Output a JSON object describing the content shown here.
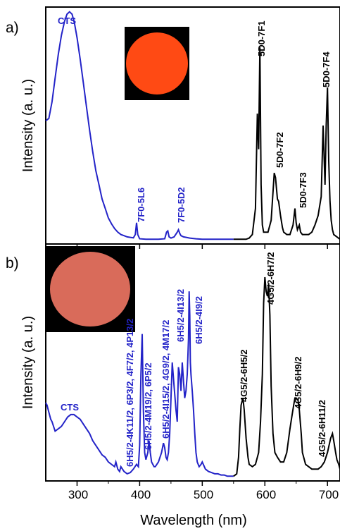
{
  "panels": [
    {
      "label": "a)",
      "ylabel": "Intensity (a. u.)"
    },
    {
      "label": "b)",
      "ylabel": "Intensity (a. u.)"
    }
  ],
  "xlabel": "Wavelength (nm)",
  "xticks": [
    "300",
    "400",
    "500",
    "600",
    "700"
  ],
  "colors": {
    "excitation": "#2323c8",
    "emission": "#000000",
    "photo_a": "#ff4a14",
    "photo_b": "#d96b5a"
  },
  "chart_data": [
    {
      "type": "line",
      "panel": "a",
      "xlabel": "Wavelength (nm)",
      "ylabel": "Intensity (a. u.)",
      "xlim": [
        250,
        720
      ],
      "grid": false,
      "annotations": {
        "cts": "CTS",
        "f0l6": "7F0-5L6",
        "f0d2": "7F0-5D2",
        "d0f1": "5D0-7F1",
        "d0f2": "5D0-7F2",
        "d0f3": "5D0-7F3",
        "d0f4": "5D0-7F4"
      },
      "series": [
        {
          "role": "excitation",
          "x": [
            250,
            255,
            260,
            265,
            270,
            275,
            280,
            284,
            288,
            292,
            296,
            300,
            305,
            310,
            315,
            320,
            325,
            330,
            335,
            340,
            345,
            350,
            355,
            360,
            365,
            370,
            375,
            380,
            385,
            390,
            393,
            395,
            397,
            400,
            410,
            420,
            430,
            440,
            443,
            445,
            447,
            450,
            455,
            460,
            462,
            464,
            466,
            470,
            480,
            490,
            500,
            510,
            520,
            530,
            540,
            550
          ],
          "y": [
            0.52,
            0.53,
            0.6,
            0.7,
            0.8,
            0.88,
            0.94,
            0.97,
            0.98,
            0.97,
            0.93,
            0.87,
            0.78,
            0.68,
            0.58,
            0.48,
            0.39,
            0.31,
            0.25,
            0.19,
            0.15,
            0.11,
            0.085,
            0.065,
            0.05,
            0.04,
            0.035,
            0.03,
            0.028,
            0.026,
            0.04,
            0.09,
            0.04,
            0.022,
            0.02,
            0.02,
            0.02,
            0.022,
            0.05,
            0.055,
            0.03,
            0.025,
            0.03,
            0.05,
            0.06,
            0.045,
            0.035,
            0.03,
            0.025,
            0.022,
            0.02,
            0.02,
            0.02,
            0.02,
            0.02,
            0.02
          ]
        },
        {
          "role": "emission",
          "x": [
            550,
            560,
            570,
            575,
            580,
            585,
            588,
            590,
            592,
            594,
            596,
            598,
            600,
            605,
            610,
            615,
            617,
            620,
            622,
            625,
            628,
            630,
            635,
            640,
            645,
            648,
            650,
            652,
            655,
            657,
            660,
            665,
            670,
            675,
            680,
            685,
            690,
            693,
            696,
            698,
            700,
            702,
            704,
            706,
            708,
            710,
            715,
            720
          ],
          "y": [
            0.02,
            0.02,
            0.02,
            0.025,
            0.04,
            0.15,
            0.55,
            0.4,
            0.83,
            0.25,
            0.08,
            0.05,
            0.05,
            0.05,
            0.1,
            0.3,
            0.28,
            0.19,
            0.18,
            0.12,
            0.07,
            0.05,
            0.04,
            0.04,
            0.08,
            0.15,
            0.09,
            0.06,
            0.08,
            0.05,
            0.04,
            0.04,
            0.04,
            0.05,
            0.08,
            0.12,
            0.2,
            0.5,
            0.25,
            0.5,
            0.66,
            0.35,
            0.18,
            0.1,
            0.06,
            0.04,
            0.03,
            0.02
          ]
        }
      ]
    },
    {
      "type": "line",
      "panel": "b",
      "xlabel": "Wavelength (nm)",
      "ylabel": "Intensity (a. u.)",
      "xlim": [
        250,
        720
      ],
      "grid": false,
      "annotations": {
        "cts": "CTS",
        "h_k": "6H5/2-4K11/2, 6P3/2, 4F7/2, 4P13/2",
        "h_m": "6H5/2-4M19/2, 6P5/2",
        "h_i15": "6H5/2-4I15/2, 4G9/2, 4M17/2",
        "h_i13": "6H5/2-4I13/2",
        "h_i9": "6H5/2-4I9/2",
        "g_h52": "4G5/2-6H5/2",
        "g_h72": "4G5/2-6H7/2",
        "g_h92": "4G5/2-6H9/2",
        "g_h112": "4G5/2-6H11/2"
      },
      "series": [
        {
          "role": "excitation",
          "x": [
            250,
            252,
            255,
            258,
            260,
            265,
            270,
            275,
            280,
            285,
            290,
            295,
            300,
            305,
            310,
            315,
            320,
            325,
            330,
            335,
            340,
            345,
            350,
            355,
            360,
            362,
            365,
            368,
            370,
            375,
            380,
            385,
            390,
            395,
            398,
            400,
            402,
            404,
            406,
            408,
            410,
            413,
            415,
            417,
            419,
            421,
            423,
            425,
            430,
            435,
            438,
            440,
            442,
            444,
            446,
            448,
            450,
            452,
            455,
            458,
            460,
            462,
            464,
            466,
            468,
            470,
            472,
            474,
            476,
            478,
            479,
            480,
            481,
            482,
            484,
            486,
            488,
            490,
            492,
            495,
            498,
            500,
            505,
            510,
            515,
            520,
            525,
            530,
            535,
            540,
            545,
            550
          ],
          "y": [
            0.33,
            0.32,
            0.29,
            0.26,
            0.25,
            0.21,
            0.22,
            0.23,
            0.25,
            0.27,
            0.28,
            0.28,
            0.27,
            0.26,
            0.24,
            0.22,
            0.2,
            0.17,
            0.15,
            0.13,
            0.11,
            0.1,
            0.08,
            0.07,
            0.06,
            0.08,
            0.05,
            0.04,
            0.06,
            0.04,
            0.03,
            0.035,
            0.05,
            0.07,
            0.06,
            0.15,
            0.45,
            0.62,
            0.3,
            0.12,
            0.09,
            0.12,
            0.17,
            0.12,
            0.08,
            0.07,
            0.06,
            0.06,
            0.08,
            0.12,
            0.16,
            0.14,
            0.1,
            0.09,
            0.12,
            0.2,
            0.35,
            0.5,
            0.4,
            0.3,
            0.25,
            0.48,
            0.45,
            0.38,
            0.5,
            0.42,
            0.35,
            0.38,
            0.45,
            0.6,
            0.8,
            0.7,
            0.5,
            0.45,
            0.38,
            0.3,
            0.2,
            0.12,
            0.08,
            0.06,
            0.07,
            0.08,
            0.05,
            0.04,
            0.035,
            0.03,
            0.03,
            0.025,
            0.025,
            0.02,
            0.02,
            0.02
          ]
        },
        {
          "role": "emission",
          "x": [
            550,
            555,
            558,
            560,
            562,
            565,
            567,
            570,
            573,
            575,
            580,
            585,
            590,
            593,
            596,
            598,
            600,
            602,
            604,
            606,
            608,
            610,
            613,
            616,
            620,
            625,
            630,
            635,
            640,
            643,
            646,
            648,
            650,
            653,
            655,
            658,
            660,
            665,
            670,
            675,
            680,
            685,
            690,
            695,
            700,
            705,
            708,
            710,
            713,
            715,
            718,
            720
          ],
          "y": [
            0.02,
            0.03,
            0.1,
            0.22,
            0.32,
            0.35,
            0.3,
            0.18,
            0.1,
            0.07,
            0.06,
            0.07,
            0.12,
            0.25,
            0.45,
            0.75,
            0.86,
            0.8,
            0.78,
            0.83,
            0.7,
            0.4,
            0.2,
            0.12,
            0.1,
            0.08,
            0.08,
            0.12,
            0.22,
            0.27,
            0.32,
            0.35,
            0.35,
            0.34,
            0.3,
            0.2,
            0.12,
            0.07,
            0.06,
            0.05,
            0.05,
            0.05,
            0.06,
            0.08,
            0.12,
            0.18,
            0.2,
            0.17,
            0.12,
            0.09,
            0.07,
            0.05
          ]
        }
      ]
    }
  ]
}
